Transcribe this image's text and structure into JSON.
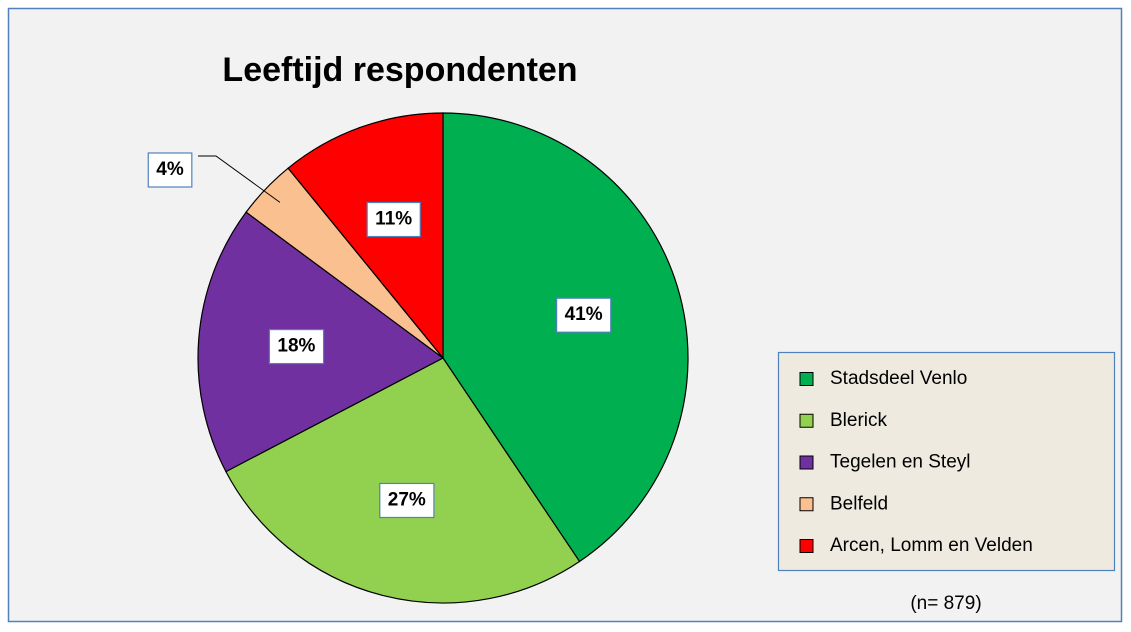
{
  "chart_data": {
    "type": "pie",
    "title": "Leeftijd respondenten",
    "categories": [
      "Stadsdeel Venlo",
      "Blerick",
      "Tegelen en Steyl",
      "Belfeld",
      "Arcen, Lomm en Velden"
    ],
    "values": [
      41,
      27,
      18,
      4,
      11
    ],
    "value_labels": [
      "41%",
      "27%",
      "18%",
      "4%",
      "11%"
    ],
    "colors": [
      "#00b050",
      "#92d050",
      "#7030a0",
      "#fac090",
      "#ff0000"
    ],
    "legend": "right",
    "annotation": "(n= 879)"
  }
}
